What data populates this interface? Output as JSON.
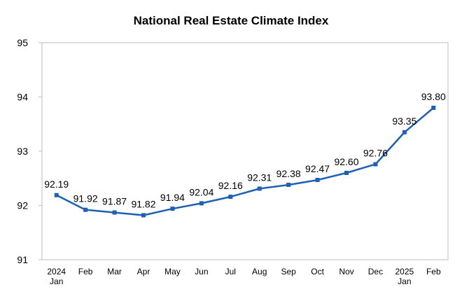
{
  "chart_data": {
    "type": "line",
    "title": "National Real Estate Climate Index",
    "xlabel": "",
    "ylabel": "",
    "ylim": [
      91,
      95
    ],
    "yticks": [
      "91",
      "92",
      "93",
      "94",
      "95"
    ],
    "categories": [
      [
        "2024",
        "Jan"
      ],
      [
        "Feb"
      ],
      [
        "Mar"
      ],
      [
        "Apr"
      ],
      [
        "May"
      ],
      [
        "Jun"
      ],
      [
        "Jul"
      ],
      [
        "Aug"
      ],
      [
        "Sep"
      ],
      [
        "Oct"
      ],
      [
        "Nov"
      ],
      [
        "Dec"
      ],
      [
        "2025",
        "Jan"
      ],
      [
        "Feb"
      ]
    ],
    "series": [
      {
        "values": [
          92.19,
          91.92,
          91.87,
          91.82,
          91.94,
          92.04,
          92.16,
          92.31,
          92.38,
          92.47,
          92.6,
          92.76,
          93.35,
          93.8
        ],
        "labels": [
          "92.19",
          "91.92",
          "91.87",
          "91.82",
          "91.94",
          "92.04",
          "92.16",
          "92.31",
          "92.38",
          "92.47",
          "92.60",
          "92.76",
          "93.35",
          "93.80"
        ],
        "color": "#1f5fb4"
      }
    ],
    "grid": false,
    "legend": "none"
  }
}
